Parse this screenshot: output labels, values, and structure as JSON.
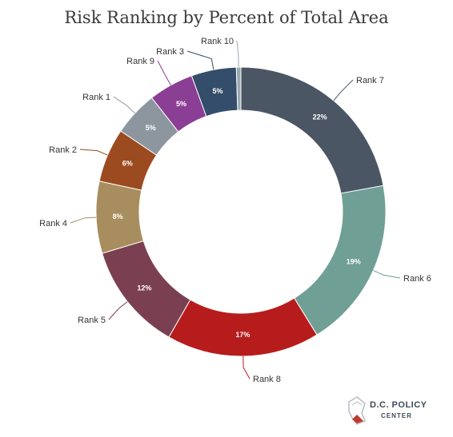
{
  "chart_data": {
    "type": "pie",
    "title": "Risk Ranking by Percent of Total Area",
    "slices": [
      {
        "name": "Rank 7",
        "value": 22,
        "label": "22%",
        "color": "#4b5664"
      },
      {
        "name": "Rank 6",
        "value": 19,
        "label": "19%",
        "color": "#6f9f95"
      },
      {
        "name": "Rank 8",
        "value": 17,
        "label": "17%",
        "color": "#b71c1c"
      },
      {
        "name": "Rank 5",
        "value": 12,
        "label": "12%",
        "color": "#7a4052"
      },
      {
        "name": "Rank 4",
        "value": 8,
        "label": "8%",
        "color": "#a88d5e"
      },
      {
        "name": "Rank 2",
        "value": 6,
        "label": "6%",
        "color": "#9c4a20"
      },
      {
        "name": "Rank 1",
        "value": 5,
        "label": "5%",
        "color": "#8d969f"
      },
      {
        "name": "Rank 9",
        "value": 5,
        "label": "5%",
        "color": "#8b3f94"
      },
      {
        "name": "Rank 3",
        "value": 5,
        "label": "5%",
        "color": "#344d6a"
      },
      {
        "name": "Rank 10",
        "value": 0.5,
        "label": "",
        "color": "#9aa8b0"
      }
    ],
    "legend": "none"
  },
  "logo": {
    "line1": "D.C. POLICY",
    "line2": "CENTER"
  }
}
